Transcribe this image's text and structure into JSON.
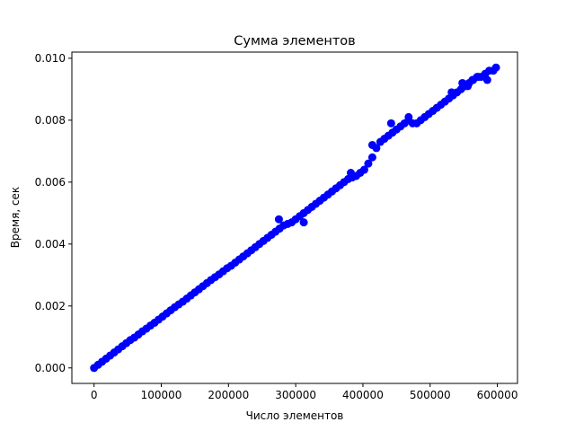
{
  "chart_data": {
    "type": "scatter",
    "title": "Сумма элементов",
    "xlabel": "Число элементов",
    "ylabel": "Время, сек",
    "xlim": [
      -33000,
      630000
    ],
    "ylim": [
      -0.0005,
      0.0102
    ],
    "xticks": [
      0,
      100000,
      200000,
      300000,
      400000,
      500000,
      600000
    ],
    "xtick_labels": [
      "0",
      "100000",
      "200000",
      "300000",
      "400000",
      "500000",
      "600000"
    ],
    "yticks": [
      0.0,
      0.002,
      0.004,
      0.006,
      0.008,
      0.01
    ],
    "ytick_labels": [
      "0.000",
      "0.002",
      "0.004",
      "0.006",
      "0.008",
      "0.010"
    ],
    "marker_color": "#0000ff",
    "grid": false,
    "legend": "none",
    "series": [
      {
        "x": [
          0,
          6000,
          12000,
          18000,
          24000,
          30000,
          36000,
          42000,
          48000,
          54000,
          60000,
          66000,
          72000,
          78000,
          84000,
          90000,
          96000,
          102000,
          108000,
          114000,
          120000,
          126000,
          132000,
          138000,
          144000,
          150000,
          156000,
          162000,
          168000,
          174000,
          180000,
          186000,
          192000,
          198000,
          204000,
          210000,
          216000,
          222000,
          228000,
          234000,
          240000,
          246000,
          252000,
          258000,
          264000,
          270000,
          276000,
          282000,
          288000,
          294000,
          300000,
          306000,
          312000,
          318000,
          324000,
          330000,
          336000,
          342000,
          348000,
          354000,
          360000,
          366000,
          372000,
          378000,
          384000,
          390000,
          396000,
          402000,
          408000,
          414000,
          420000,
          426000,
          432000,
          438000,
          444000,
          450000,
          456000,
          462000,
          468000,
          474000,
          480000,
          486000,
          492000,
          498000,
          504000,
          510000,
          516000,
          522000,
          528000,
          534000,
          540000,
          546000,
          552000,
          558000,
          564000,
          570000,
          576000,
          582000,
          588000,
          594000,
          598000,
          275000,
          312000,
          382000,
          414000,
          442000,
          468000,
          532000,
          548000,
          556000,
          563000,
          572000,
          585000
        ],
        "y": [
          0.0,
          0.0001,
          0.0002,
          0.0003,
          0.0004,
          0.0005,
          0.0006,
          0.0007,
          0.0008,
          0.0009,
          0.00098,
          0.00108,
          0.00118,
          0.00127,
          0.00137,
          0.00146,
          0.00156,
          0.00166,
          0.00176,
          0.00186,
          0.00196,
          0.00205,
          0.00214,
          0.00224,
          0.00234,
          0.00244,
          0.00254,
          0.00264,
          0.00274,
          0.00284,
          0.00293,
          0.00302,
          0.00312,
          0.00322,
          0.0033,
          0.0034,
          0.0035,
          0.0036,
          0.0037,
          0.0038,
          0.0039,
          0.004,
          0.0041,
          0.0042,
          0.0043,
          0.0044,
          0.0045,
          0.0046,
          0.00465,
          0.0047,
          0.0048,
          0.0049,
          0.005,
          0.0051,
          0.0052,
          0.0053,
          0.0054,
          0.0055,
          0.0056,
          0.0057,
          0.0058,
          0.0059,
          0.006,
          0.0061,
          0.00615,
          0.0062,
          0.0063,
          0.0064,
          0.0066,
          0.0068,
          0.0071,
          0.0073,
          0.0074,
          0.0075,
          0.0076,
          0.0077,
          0.0078,
          0.0079,
          0.008,
          0.0079,
          0.0079,
          0.008,
          0.0081,
          0.0082,
          0.0083,
          0.0084,
          0.0085,
          0.0086,
          0.0087,
          0.0088,
          0.0089,
          0.009,
          0.0091,
          0.0092,
          0.0093,
          0.0094,
          0.0094,
          0.0095,
          0.0096,
          0.0096,
          0.0097,
          0.0048,
          0.0047,
          0.0063,
          0.0072,
          0.0079,
          0.0081,
          0.0089,
          0.0092,
          0.0091,
          0.0093,
          0.0094,
          0.0093
        ]
      }
    ]
  }
}
